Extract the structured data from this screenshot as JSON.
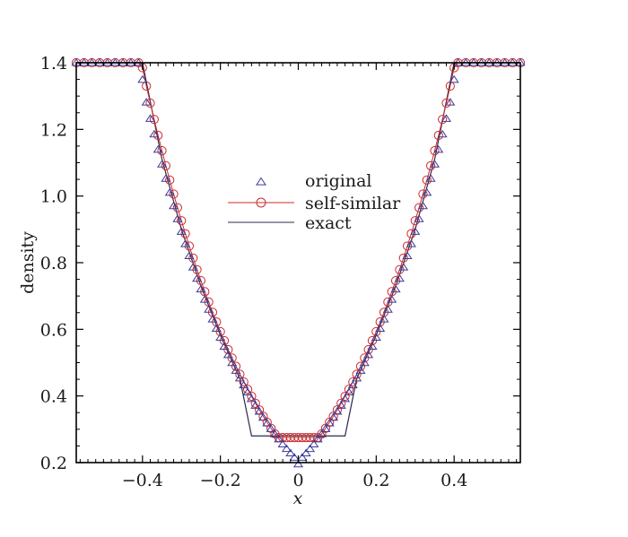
{
  "chart_data": {
    "type": "scatter",
    "xlabel": "x",
    "ylabel": "density",
    "xlim": [
      -0.57,
      0.57
    ],
    "ylim": [
      0.2,
      1.4
    ],
    "x_ticks": [
      -0.4,
      -0.2,
      0,
      0.2,
      0.4
    ],
    "x_tick_labels": [
      "−0.4",
      "−0.2",
      "0",
      "0.2",
      "0.4"
    ],
    "y_ticks": [
      0.2,
      0.4,
      0.6,
      0.8,
      1.0,
      1.2,
      1.4
    ],
    "y_tick_labels": [
      "0.2",
      "0.4",
      "0.6",
      "0.8",
      "1.0",
      "1.2",
      "1.4"
    ],
    "grid": false,
    "legend_position": "center",
    "series": [
      {
        "name": "original",
        "marker": "triangle",
        "line": false,
        "color": "#3a3a9c",
        "x": [
          -0.57,
          -0.55,
          -0.53,
          -0.51,
          -0.49,
          -0.47,
          -0.45,
          -0.43,
          -0.41,
          -0.4,
          -0.39,
          -0.38,
          -0.37,
          -0.36,
          -0.35,
          -0.34,
          -0.33,
          -0.32,
          -0.31,
          -0.3,
          -0.29,
          -0.28,
          -0.27,
          -0.26,
          -0.25,
          -0.24,
          -0.23,
          -0.22,
          -0.21,
          -0.2,
          -0.19,
          -0.18,
          -0.17,
          -0.16,
          -0.15,
          -0.14,
          -0.13,
          -0.12,
          -0.11,
          -0.1,
          -0.09,
          -0.08,
          -0.07,
          -0.06,
          -0.05,
          -0.04,
          -0.03,
          -0.02,
          -0.01,
          0.0,
          0.01,
          0.02,
          0.03,
          0.04,
          0.05,
          0.06,
          0.07,
          0.08,
          0.09,
          0.1,
          0.11,
          0.12,
          0.13,
          0.14,
          0.15,
          0.16,
          0.17,
          0.18,
          0.19,
          0.2,
          0.21,
          0.22,
          0.23,
          0.24,
          0.25,
          0.26,
          0.27,
          0.28,
          0.29,
          0.3,
          0.31,
          0.32,
          0.33,
          0.34,
          0.35,
          0.36,
          0.37,
          0.38,
          0.39,
          0.4,
          0.41,
          0.43,
          0.45,
          0.47,
          0.49,
          0.51,
          0.53,
          0.55,
          0.57
        ],
        "y": [
          1.4,
          1.4,
          1.4,
          1.4,
          1.4,
          1.4,
          1.4,
          1.4,
          1.4,
          1.349,
          1.281,
          1.232,
          1.185,
          1.139,
          1.095,
          1.052,
          1.01,
          0.97,
          0.931,
          0.893,
          0.856,
          0.82,
          0.786,
          0.752,
          0.72,
          0.689,
          0.659,
          0.63,
          0.602,
          0.575,
          0.548,
          0.523,
          0.499,
          0.476,
          0.453,
          0.432,
          0.411,
          0.391,
          0.371,
          0.353,
          0.335,
          0.318,
          0.301,
          0.285,
          0.27,
          0.255,
          0.241,
          0.228,
          0.215,
          0.195,
          0.215,
          0.228,
          0.241,
          0.255,
          0.27,
          0.285,
          0.301,
          0.318,
          0.335,
          0.353,
          0.371,
          0.391,
          0.411,
          0.432,
          0.453,
          0.476,
          0.499,
          0.523,
          0.548,
          0.575,
          0.602,
          0.63,
          0.659,
          0.689,
          0.72,
          0.752,
          0.786,
          0.82,
          0.856,
          0.893,
          0.931,
          0.97,
          1.01,
          1.052,
          1.095,
          1.139,
          1.185,
          1.232,
          1.281,
          1.349,
          1.4,
          1.4,
          1.4,
          1.4,
          1.4,
          1.4,
          1.4,
          1.4,
          1.4
        ]
      },
      {
        "name": "self-similar",
        "marker": "circle",
        "line": true,
        "color": "#cc2a2a",
        "x": [
          -0.57,
          -0.55,
          -0.53,
          -0.51,
          -0.49,
          -0.47,
          -0.45,
          -0.43,
          -0.41,
          -0.4,
          -0.39,
          -0.38,
          -0.37,
          -0.36,
          -0.35,
          -0.34,
          -0.33,
          -0.32,
          -0.31,
          -0.3,
          -0.29,
          -0.28,
          -0.27,
          -0.26,
          -0.25,
          -0.24,
          -0.23,
          -0.22,
          -0.21,
          -0.2,
          -0.19,
          -0.18,
          -0.17,
          -0.16,
          -0.15,
          -0.14,
          -0.13,
          -0.12,
          -0.11,
          -0.1,
          -0.09,
          -0.08,
          -0.07,
          -0.06,
          -0.05,
          -0.04,
          -0.03,
          -0.02,
          -0.01,
          0.0,
          0.01,
          0.02,
          0.03,
          0.04,
          0.05,
          0.06,
          0.07,
          0.08,
          0.09,
          0.1,
          0.11,
          0.12,
          0.13,
          0.14,
          0.15,
          0.16,
          0.17,
          0.18,
          0.19,
          0.2,
          0.21,
          0.22,
          0.23,
          0.24,
          0.25,
          0.26,
          0.27,
          0.28,
          0.29,
          0.3,
          0.31,
          0.32,
          0.33,
          0.34,
          0.35,
          0.36,
          0.37,
          0.38,
          0.39,
          0.4,
          0.41,
          0.43,
          0.45,
          0.47,
          0.49,
          0.51,
          0.53,
          0.55,
          0.57
        ],
        "y": [
          1.4,
          1.4,
          1.4,
          1.4,
          1.4,
          1.4,
          1.4,
          1.4,
          1.4,
          1.385,
          1.33,
          1.279,
          1.23,
          1.182,
          1.136,
          1.091,
          1.048,
          1.006,
          0.965,
          0.926,
          0.887,
          0.85,
          0.814,
          0.779,
          0.746,
          0.713,
          0.682,
          0.651,
          0.622,
          0.593,
          0.566,
          0.539,
          0.514,
          0.489,
          0.465,
          0.442,
          0.42,
          0.399,
          0.378,
          0.358,
          0.339,
          0.321,
          0.303,
          0.286,
          0.275,
          0.275,
          0.275,
          0.275,
          0.275,
          0.275,
          0.275,
          0.275,
          0.275,
          0.275,
          0.275,
          0.286,
          0.303,
          0.321,
          0.339,
          0.358,
          0.378,
          0.399,
          0.42,
          0.442,
          0.465,
          0.489,
          0.514,
          0.539,
          0.566,
          0.593,
          0.622,
          0.651,
          0.682,
          0.713,
          0.746,
          0.779,
          0.814,
          0.85,
          0.887,
          0.926,
          0.965,
          1.006,
          1.048,
          1.091,
          1.136,
          1.182,
          1.23,
          1.279,
          1.33,
          1.385,
          1.4,
          1.4,
          1.4,
          1.4,
          1.4,
          1.4,
          1.4,
          1.4,
          1.4
        ]
      },
      {
        "name": "exact",
        "marker": "none",
        "line": true,
        "color": "#2b2b4a",
        "x": [
          -0.57,
          -0.4,
          -0.35,
          -0.3,
          -0.25,
          -0.2,
          -0.15,
          -0.12,
          0.0,
          0.12,
          0.15,
          0.2,
          0.25,
          0.3,
          0.35,
          0.4,
          0.57
        ],
        "y": [
          1.4,
          1.4,
          1.11,
          0.9,
          0.73,
          0.582,
          0.452,
          0.28,
          0.28,
          0.28,
          0.452,
          0.582,
          0.73,
          0.9,
          1.11,
          1.4,
          1.4
        ]
      }
    ]
  }
}
